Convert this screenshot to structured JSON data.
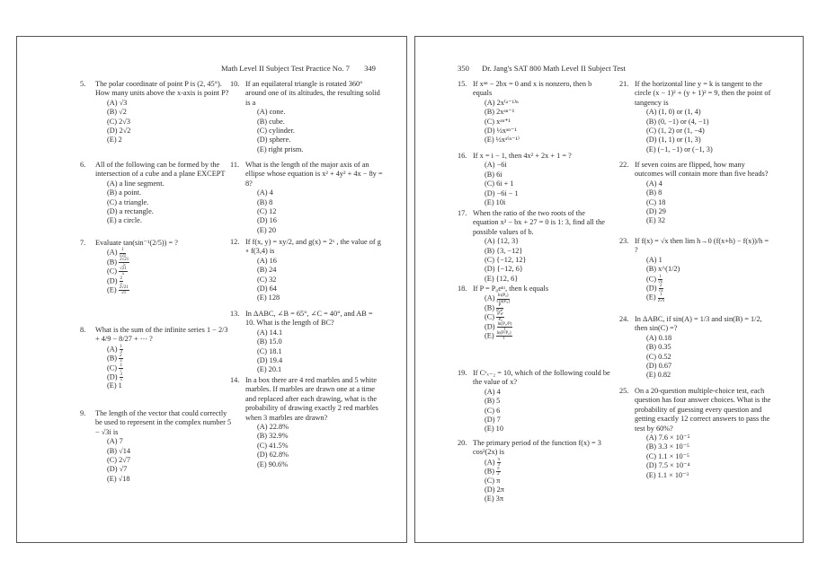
{
  "left_page": {
    "header": "Math Level II Subject Test Practice No. 7",
    "page_number": "349",
    "columns": [
      [
        {
          "num": "5.",
          "text": "The polar coordinate of point P is (2, 45°). How many units above the x-axis is point P?",
          "choices": [
            "(A) √3",
            "(B) √2",
            "(C) 2√3",
            "(D) 2√2",
            "(E) 2"
          ]
        },
        {
          "num": "6.",
          "text": "All of the following can be formed by the intersection of a cube and a plane EXCEPT",
          "choices": [
            "(A) a line segment.",
            "(B) a point.",
            "(C) a triangle.",
            "(D) a rectangle.",
            "(E) a circle."
          ]
        },
        {
          "num": "7.",
          "text": "Evaluate tan(sin⁻¹(2/5)) = ?",
          "choices": [
            {
              "label": "(A)",
              "num": "1",
              "den": "√21"
            },
            {
              "label": "(B)",
              "num": "2√21",
              "den": "5"
            },
            {
              "label": "(C)",
              "num": "√21",
              "den": "5"
            },
            {
              "label": "(D)",
              "num": "2",
              "den": "5"
            },
            {
              "label": "(E)",
              "num": "2√21",
              "den": "21"
            }
          ]
        },
        {
          "num": "8.",
          "text": "What is the sum of the infinite series 1 − 2/3 + 4/9 − 8/27 + ⋯ ?",
          "choices": [
            {
              "label": "(A)",
              "num": "1",
              "den": "3"
            },
            {
              "label": "(B)",
              "num": "2",
              "den": "3"
            },
            {
              "label": "(C)",
              "num": "3",
              "den": "7"
            },
            {
              "label": "(D)",
              "num": "3",
              "den": "5"
            },
            "(E) 1"
          ]
        },
        {
          "num": "9.",
          "text": "The length of the vector that could correctly be used to represent in the complex number 5 − √3i is",
          "choices": [
            "(A) 7",
            "(B) √14",
            "(C) 2√7",
            "(D) √7",
            "(E) √18"
          ]
        }
      ],
      [
        {
          "num": "10.",
          "text": "If an equilateral triangle is rotated 360° around one of its altitudes, the resulting solid is a",
          "choices": [
            "(A) cone.",
            "(B) cube.",
            "(C) cylinder.",
            "(D) sphere.",
            "(E) right prism."
          ]
        },
        {
          "num": "11.",
          "text": "What is the length of the major axis of an ellipse whose equation is x² + 4y² + 4x − 8y = 8?",
          "choices": [
            "(A) 4",
            "(B) 8",
            "(C) 12",
            "(D) 16",
            "(E) 20"
          ]
        },
        {
          "num": "12.",
          "text": "If f(x, y) = xy/2, and g(x) = 2ˣ , the value of g ∘ f(3,4) is",
          "choices": [
            "(A) 16",
            "(B) 24",
            "(C) 32",
            "(D) 64",
            "(E) 128"
          ]
        },
        {
          "num": "13.",
          "text": "In ΔABC, ∠B = 65°, ∠C = 40°, and AB = 10. What is the length of BC?",
          "choices": [
            "(A) 14.1",
            "(B) 15.0",
            "(C) 18.1",
            "(D) 19.4",
            "(E) 20.1"
          ]
        },
        {
          "num": "14.",
          "text": "In a box there are 4 red marbles and 5 white marbles. If marbles are drawn one at a time and replaced after each drawing, what is the probability of drawing exactly 2 red marbles when 3 marbles are drawn?",
          "choices": [
            "(A) 22.8%",
            "(B) 32.9%",
            "(C) 41.5%",
            "(D) 62.8%",
            "(E) 90.6%"
          ]
        }
      ]
    ]
  },
  "right_page": {
    "page_number": "350",
    "header": "Dr. Jang's SAT 800 Math Level II Subject Test",
    "columns": [
      [
        {
          "num": "15.",
          "text": "If xᵃⁿ − 2bx = 0 and x is nonzero, then b equals",
          "choices": [
            "(A) 2x⁽ᵃ⁻¹⁾ⁿ",
            "(B) 2xᵃⁿ⁻¹",
            "(C) xᵃⁿ⁺¹",
            "(D) ½xᵃⁿ⁻¹",
            "(E) ½xᵃ⁽ⁿ⁻¹⁾"
          ]
        },
        {
          "num": "16.",
          "text": "If x = i − 1, then 4x² + 2x + 1 = ?",
          "choices": [
            "(A) −6i",
            "(B) 6i",
            "(C) 6i + 1",
            "(D) −6i − 1",
            "(E) 10i"
          ]
        },
        {
          "num": "17.",
          "text": "When the ratio of the two roots of the equation x² − bx + 27 = 0 is 1: 3, find all the possible values of b.",
          "choices": [
            "(A) {12, 3}",
            "(B) {3, −12}",
            "(C) {−12, 12}",
            "(D) {−12, 6}",
            "(E) {12, 6}"
          ]
        },
        {
          "num": "18.",
          "text": "If P = P₀eᵏᵗ, then k equals",
          "choices": [
            {
              "label": "(A)",
              "num": "ln(P₀)",
              "den": "t ln(P₀)"
            },
            {
              "label": "(B)",
              "num": "P",
              "den": "P₀eᵗ"
            },
            {
              "label": "(C)",
              "num": "P eᵗ",
              "den": "P₀"
            },
            {
              "label": "(D)",
              "num": "ln(P₀/P)",
              "den": "t"
            },
            {
              "label": "(E)",
              "num": "ln(P/P₀)",
              "den": "t"
            }
          ]
        },
        {
          "num": "19.",
          "text": "If Cˣₓ₋₂ = 10, which of the following could be the value of x?",
          "choices": [
            "(A) 4",
            "(B) 5",
            "(C) 6",
            "(D) 7",
            "(E) 10"
          ]
        },
        {
          "num": "20.",
          "text": "The primary period of the function f(x) = 3 cos²(2x) is",
          "choices": [
            {
              "label": "(A)",
              "num": "π",
              "den": "3"
            },
            {
              "label": "(B)",
              "num": "π",
              "den": "2"
            },
            "(C) π",
            "(D) 2π",
            "(E) 3π"
          ]
        }
      ],
      [
        {
          "num": "21.",
          "text": "If the horizontal line y = k is tangent to the circle (x − 1)² + (y + 1)² = 9, then the point of tangency is",
          "choices": [
            "(A) (1, 0) or (1, 4)",
            "(B) (0, −1) or (4, −1)",
            "(C) (1, 2) or (1, −4)",
            "(D) (1, 1) or (1, 3)",
            "(E) (−1, −1) or (−1, 3)"
          ]
        },
        {
          "num": "22.",
          "text": "If seven coins are flipped, how many outcomes will contain more than five heads?",
          "choices": [
            "(A) 4",
            "(B) 8",
            "(C) 18",
            "(D) 29",
            "(E) 32"
          ]
        },
        {
          "num": "23.",
          "text": "If f(x) = √x then lim h→0 (f(x+h) − f(x))/h = ?",
          "choices": [
            "(A) 1",
            "(B) x^(1/2)",
            {
              "label": "(C)",
              "num": "1",
              "den": "√x"
            },
            {
              "label": "(D)",
              "num": "2",
              "den": "√x"
            },
            {
              "label": "(E)",
              "num": "1",
              "den": "2√x"
            }
          ]
        },
        {
          "num": "24.",
          "text": "In ΔABC, if sin(A) = 1/3 and sin(B) = 1/2, then sin(C) =?",
          "choices": [
            "(A) 0.18",
            "(B) 0.35",
            "(C) 0.52",
            "(D) 0.67",
            "(E) 0.82"
          ]
        },
        {
          "num": "25.",
          "text": "On a 20-question multiple-choice test, each question has four answer choices. What is the probability of guessing every question and getting exactly 12 correct answers to pass the test by 60%?",
          "choices": [
            "(A) 7.6 × 10⁻⁵",
            "(B) 3.3 × 10⁻⁵",
            "(C) 1.1 × 10⁻⁵",
            "(D) 7.5 × 10⁻⁴",
            "(E) 1.1 × 10⁻³"
          ]
        }
      ]
    ]
  }
}
